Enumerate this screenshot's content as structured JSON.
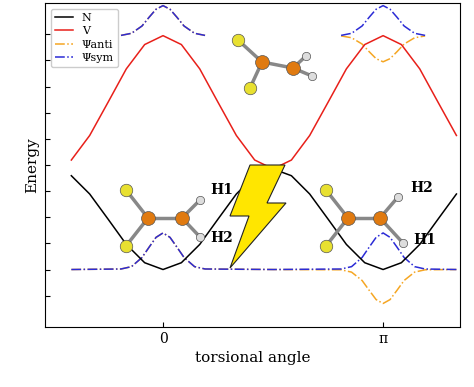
{
  "chart_data": {
    "type": "line",
    "x_label": "torsional angle",
    "y_label": "Energy",
    "xlim": [
      -1.685,
      4.24
    ],
    "ylim": [
      -2.2,
      10.2
    ],
    "xticks": [
      {
        "value": 0,
        "label": "0"
      },
      {
        "value": 3.142,
        "label": "π"
      }
    ],
    "yticks": [
      -1,
      0,
      1,
      2,
      3,
      4,
      5,
      6,
      7,
      8,
      9
    ],
    "tick_labels": "x",
    "legend": "upper left",
    "molecule_labels": {
      "left": [
        "H1",
        "H2"
      ],
      "right": [
        "H2",
        "H1"
      ]
    },
    "series": [
      {
        "name": "N",
        "color": "#000000",
        "line_style": "solid",
        "x": [
          -1.309,
          -1.047,
          -0.785,
          -0.524,
          -0.262,
          0,
          0.262,
          0.524,
          0.785,
          1.047,
          1.309,
          1.571,
          1.833,
          2.094,
          2.356,
          2.618,
          2.88,
          3.142,
          3.403,
          3.665,
          3.927,
          4.189
        ],
        "values": [
          3.59,
          2.89,
          1.93,
          0.96,
          0.26,
          0,
          0.26,
          0.96,
          1.93,
          2.89,
          3.59,
          3.85,
          3.59,
          2.89,
          1.93,
          0.96,
          0.26,
          0,
          0.26,
          0.96,
          1.93,
          2.89
        ]
      },
      {
        "name": "V",
        "color": "#e8201a",
        "line_style": "solid",
        "x": [
          -1.309,
          -1.047,
          -0.785,
          -0.524,
          -0.262,
          0,
          0.262,
          0.524,
          0.785,
          1.047,
          1.309,
          1.571,
          1.833,
          2.094,
          2.356,
          2.618,
          2.88,
          3.142,
          3.403,
          3.665,
          3.927,
          4.189
        ],
        "values": [
          4.19,
          5.13,
          6.4,
          7.68,
          8.61,
          8.95,
          8.61,
          7.68,
          6.4,
          5.13,
          4.19,
          3.85,
          4.19,
          5.13,
          6.4,
          7.68,
          8.61,
          8.95,
          8.61,
          7.68,
          6.4,
          5.13
        ]
      },
      {
        "name": "Ψanti",
        "color": "#f5a623",
        "line_style": "dashdot",
        "x": [
          -1.309,
          -0.6,
          -0.45,
          -0.3,
          -0.2,
          -0.1,
          0,
          0.1,
          0.2,
          0.3,
          0.45,
          0.6,
          1.571,
          2.542,
          2.692,
          2.842,
          2.942,
          3.042,
          3.142,
          3.242,
          3.342,
          3.442,
          3.592,
          3.742,
          4.189,
          null,
          -0.6,
          -0.45,
          -0.3,
          -0.2,
          -0.1,
          0,
          0.1,
          0.2,
          0.3,
          0.45,
          0.6,
          null,
          2.542,
          2.692,
          2.842,
          2.942,
          3.042,
          3.142,
          3.242,
          3.342,
          3.442,
          3.592,
          3.742
        ],
        "values": [
          0,
          0.02,
          0.11,
          0.46,
          0.85,
          1.23,
          1.4,
          1.23,
          0.85,
          0.46,
          0.11,
          0.02,
          0,
          -0.01,
          -0.1,
          -0.42,
          -0.79,
          -1.15,
          -1.3,
          -1.15,
          -0.79,
          -0.42,
          -0.1,
          -0.01,
          0,
          null,
          8.96,
          9.04,
          9.32,
          9.65,
          9.96,
          10.1,
          9.96,
          9.65,
          9.32,
          9.04,
          8.96,
          null,
          8.94,
          8.87,
          8.63,
          8.34,
          8.07,
          7.95,
          8.07,
          8.34,
          8.63,
          8.87,
          8.94
        ]
      },
      {
        "name": "Ψsym",
        "color": "#2b2bd6",
        "line_style": "dashdot",
        "x": [
          -1.309,
          -0.6,
          -0.45,
          -0.3,
          -0.2,
          -0.1,
          0,
          0.1,
          0.2,
          0.3,
          0.45,
          0.6,
          1.571,
          2.542,
          2.692,
          2.842,
          2.942,
          3.042,
          3.142,
          3.242,
          3.342,
          3.442,
          3.592,
          3.742,
          4.189,
          null,
          -0.6,
          -0.45,
          -0.3,
          -0.2,
          -0.1,
          0,
          0.1,
          0.2,
          0.3,
          0.45,
          0.6,
          null,
          2.542,
          2.692,
          2.842,
          2.942,
          3.042,
          3.142,
          3.242,
          3.342,
          3.442,
          3.592,
          3.742
        ],
        "values": [
          0,
          0.02,
          0.11,
          0.46,
          0.85,
          1.23,
          1.4,
          1.23,
          0.85,
          0.46,
          0.11,
          0.02,
          0,
          0.02,
          0.11,
          0.46,
          0.85,
          1.23,
          1.4,
          1.23,
          0.85,
          0.46,
          0.11,
          0.02,
          0,
          null,
          8.96,
          9.04,
          9.32,
          9.65,
          9.96,
          10.1,
          9.96,
          9.65,
          9.32,
          9.04,
          8.96,
          null,
          8.96,
          9.04,
          9.32,
          9.65,
          9.96,
          10.1,
          9.96,
          9.65,
          9.32,
          9.04,
          8.96
        ]
      }
    ]
  }
}
